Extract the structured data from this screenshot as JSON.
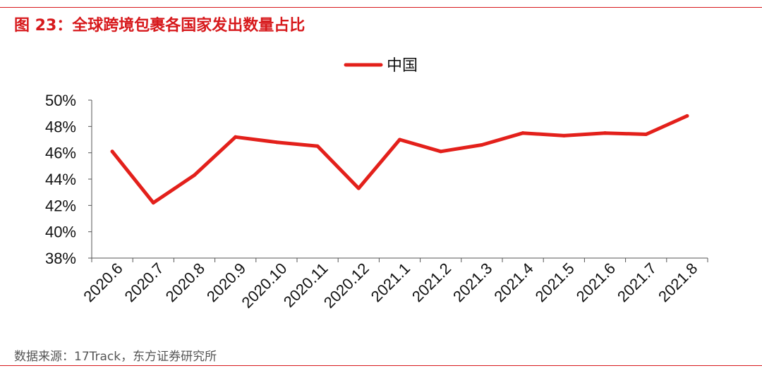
{
  "header": {
    "title": "图 23：全球跨境包裹各国家发出数量占比"
  },
  "footer": {
    "source": "数据来源：17Track，东方证券研究所"
  },
  "colors": {
    "accent": "#d7191c",
    "series": "#e3201b",
    "axis": "#555555",
    "text": "#111111"
  },
  "chart_data": {
    "type": "line",
    "title": "",
    "xlabel": "",
    "ylabel": "",
    "categories": [
      "2020.6",
      "2020.7",
      "2020.8",
      "2020.9",
      "2020.10",
      "2020.11",
      "2020.12",
      "2021.1",
      "2021.2",
      "2021.3",
      "2021.4",
      "2021.5",
      "2021.6",
      "2021.7",
      "2021.8"
    ],
    "series": [
      {
        "name": "中国",
        "values": [
          46.1,
          42.2,
          44.3,
          47.2,
          46.8,
          46.5,
          43.3,
          47.0,
          46.1,
          46.6,
          47.5,
          47.3,
          47.5,
          47.4,
          48.8
        ]
      }
    ],
    "ylim": [
      38,
      50
    ],
    "yticks": [
      "38%",
      "40%",
      "42%",
      "44%",
      "46%",
      "48%",
      "50%"
    ],
    "grid": false,
    "legend": "top-center"
  }
}
